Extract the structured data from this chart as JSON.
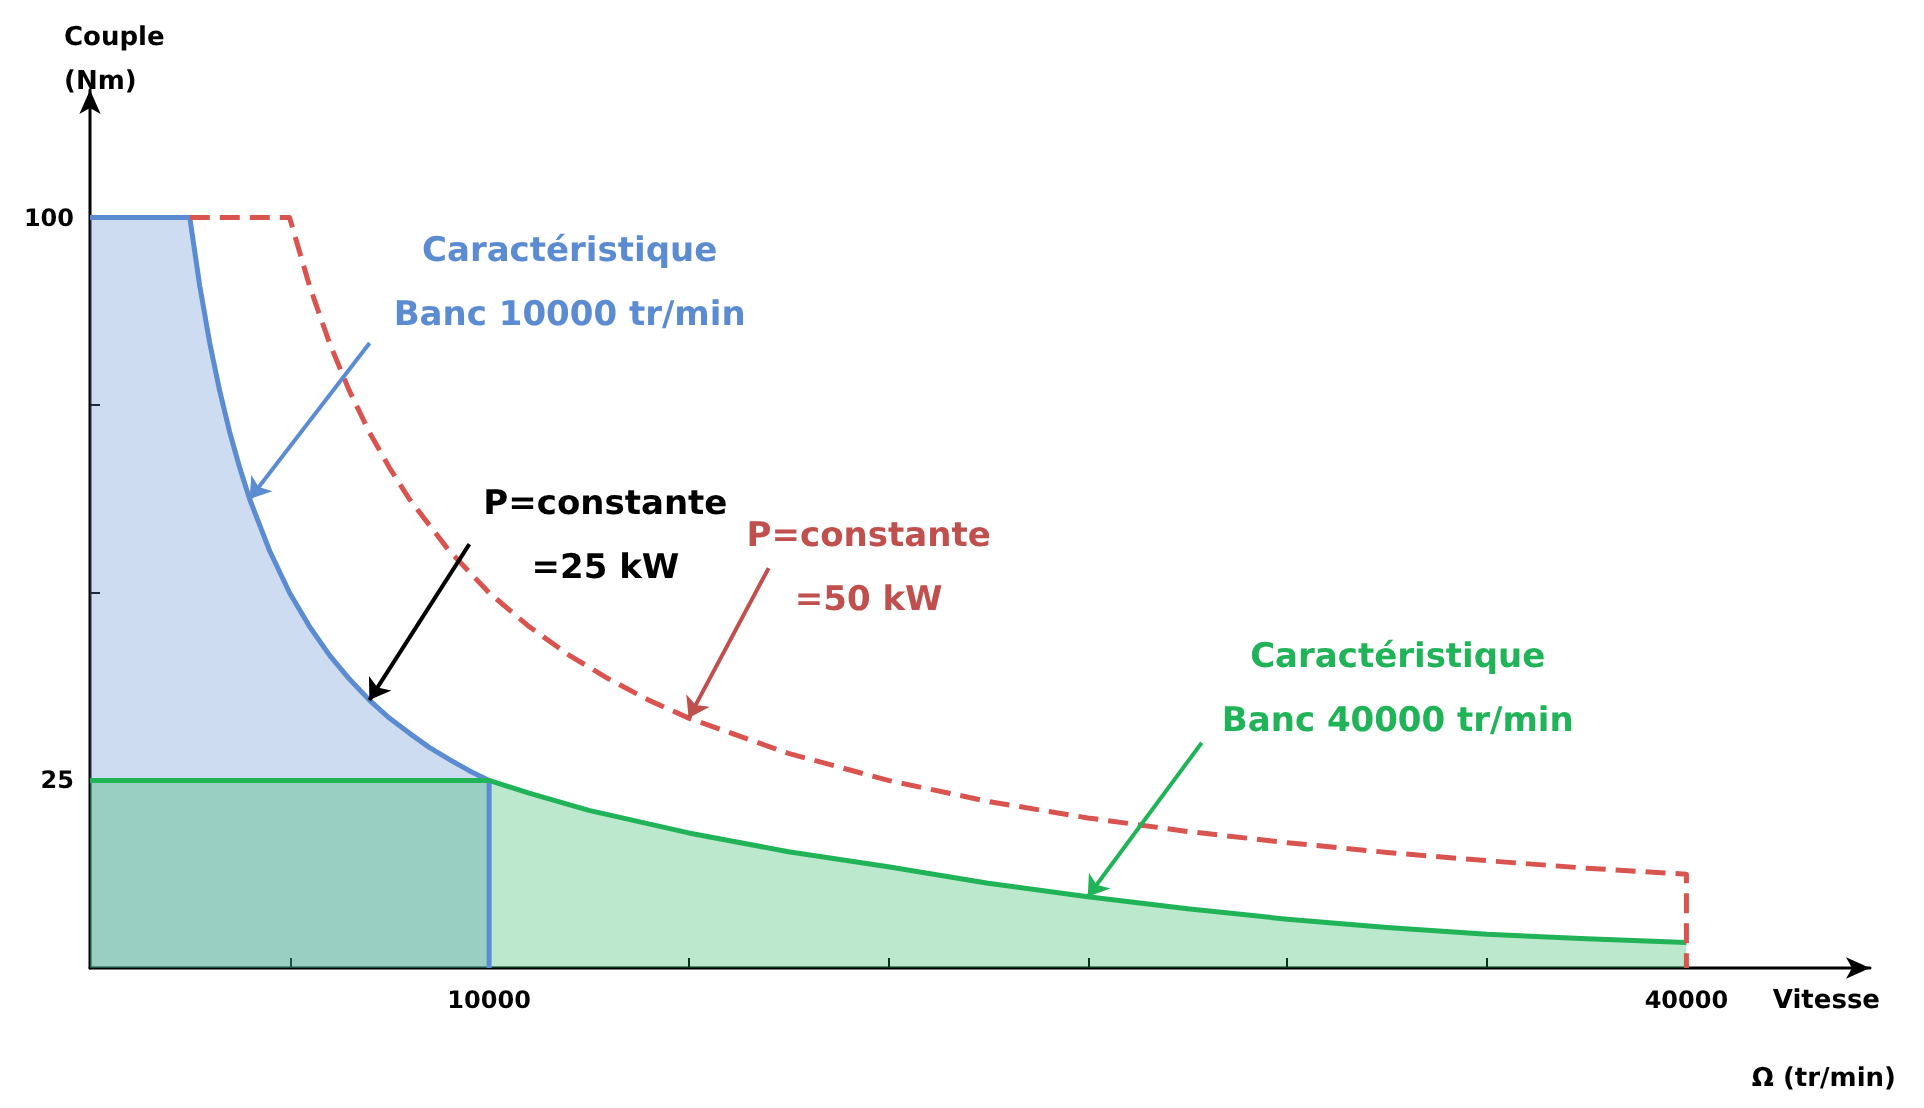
{
  "chart_data": {
    "type": "area",
    "xlabel": "Vitesse",
    "ylabel": "Couple\n(Nm)",
    "xlim": [
      0,
      44600
    ],
    "ylim": [
      0,
      117
    ],
    "xticks": [
      {
        "value": 5000,
        "label": null
      },
      10000,
      {
        "value": 15000,
        "label": null
      },
      {
        "value": 20000,
        "label": null
      },
      {
        "value": 25000,
        "label": null
      },
      {
        "value": 30000,
        "label": null
      },
      {
        "value": 35000,
        "label": null
      },
      40000
    ],
    "yticks": [
      25,
      {
        "value": 50,
        "label": null
      },
      {
        "value": 75,
        "label": null
      },
      100
    ],
    "grid": false,
    "marker": "none",
    "series": [
      {
        "color": "#5b8bd0",
        "x": [
          0,
          2500,
          2750,
          3000,
          3250,
          3500,
          3750,
          4000,
          4500,
          5000,
          5500,
          6000,
          6500,
          7000,
          7500,
          8000,
          8500,
          9000,
          9500,
          10000,
          10000
        ],
        "values": [
          100,
          100,
          90.9,
          83.3,
          76.9,
          71.4,
          66.7,
          62.5,
          55.6,
          50,
          45.5,
          41.7,
          38.5,
          35.7,
          33.3,
          31.3,
          29.4,
          27.8,
          26.3,
          25,
          0
        ]
      },
      {
        "color": "#21b358",
        "x": [
          0,
          10000,
          11000,
          12500,
          15000,
          17500,
          20000,
          22500,
          25000,
          27500,
          30000,
          32500,
          35000,
          37500,
          40000
        ],
        "values": [
          25,
          25,
          23.3,
          21,
          18,
          15.5,
          13.5,
          11.3,
          9.5,
          7.9,
          6.5,
          5.4,
          4.5,
          3.9,
          3.4
        ]
      },
      {
        "type": "line",
        "line_style": "dashed",
        "color": "#d9534f",
        "x": [
          2500,
          5000,
          5500,
          6000,
          6500,
          7000,
          7500,
          8000,
          9000,
          10000,
          11000,
          12000,
          13000,
          14000,
          15000,
          17500,
          20000,
          22500,
          25000,
          27500,
          30000,
          32500,
          35000,
          37500,
          40000,
          40000
        ],
        "values": [
          100,
          100,
          90.9,
          83.3,
          76.9,
          71.4,
          66.7,
          62.5,
          55.6,
          50,
          45.5,
          41.7,
          38.5,
          35.7,
          33.3,
          28.6,
          25,
          22.2,
          20,
          18.2,
          16.7,
          15.4,
          14.3,
          13.3,
          12.5,
          0
        ]
      }
    ],
    "annotations": [
      {
        "text": "Caractéristique\nBanc 10000 tr/min",
        "x": 4000,
        "y": 62.5
      },
      {
        "text": "P=constante\n=25 kW",
        "x": 7000,
        "y": 35.7
      },
      {
        "text": "P=constante\n=50 kW",
        "x": 15000,
        "y": 33.3
      },
      {
        "text": "Caractéristique\nBanc 40000 tr/min",
        "x": 25000,
        "y": 9.5
      },
      "Ω (tr/min)"
    ]
  }
}
